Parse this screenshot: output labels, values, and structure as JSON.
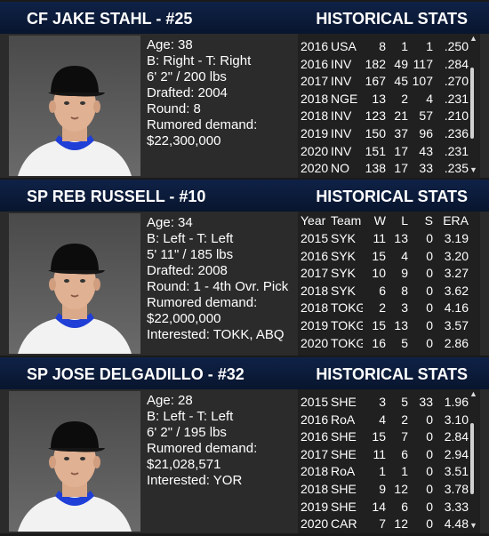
{
  "cards": [
    {
      "header": {
        "name": "CF JAKE STAHL - #25",
        "section": "HISTORICAL STATS"
      },
      "info": [
        "Age: 38",
        "B: Right - T: Right",
        "6' 2\" / 200 lbs",
        "Drafted: 2004",
        "Round: 8",
        "Rumored demand:",
        "$22,300,000"
      ],
      "stats": {
        "rows": [
          [
            "2016",
            "USA",
            "8",
            "1",
            "1",
            ".250"
          ],
          [
            "2016",
            "INV",
            "182",
            "49",
            "117",
            ".284"
          ],
          [
            "2017",
            "INV",
            "167",
            "45",
            "107",
            ".270"
          ],
          [
            "2018",
            "NGE",
            "13",
            "2",
            "4",
            ".231"
          ],
          [
            "2018",
            "INV",
            "123",
            "21",
            "57",
            ".210"
          ],
          [
            "2019",
            "INV",
            "150",
            "37",
            "96",
            ".236"
          ],
          [
            "2020",
            "INV",
            "151",
            "17",
            "43",
            ".231"
          ],
          [
            "2020",
            "NO",
            "138",
            "17",
            "33",
            ".235"
          ]
        ]
      }
    },
    {
      "header": {
        "name": "SP REB RUSSELL - #10",
        "section": "HISTORICAL STATS"
      },
      "info": [
        "Age: 34",
        "B: Left - T: Left",
        "5' 11\" / 185 lbs",
        "Drafted: 2008",
        "Round: 1 - 4th Ovr. Pick",
        "Rumored demand:",
        "$22,000,000",
        "Interested: TOKK, ABQ"
      ],
      "stats": {
        "columns": [
          "Year",
          "Team",
          "W",
          "L",
          "S",
          "ERA"
        ],
        "rows": [
          [
            "2015",
            "SYK",
            "11",
            "13",
            "0",
            "3.19"
          ],
          [
            "2016",
            "SYK",
            "15",
            "4",
            "0",
            "3.20"
          ],
          [
            "2017",
            "SYK",
            "10",
            "9",
            "0",
            "3.27"
          ],
          [
            "2018",
            "SYK",
            "6",
            "8",
            "0",
            "3.62"
          ],
          [
            "2018",
            "TOKG",
            "2",
            "3",
            "0",
            "4.16"
          ],
          [
            "2019",
            "TOKG",
            "15",
            "13",
            "0",
            "3.57"
          ],
          [
            "2020",
            "TOKG",
            "16",
            "5",
            "0",
            "2.86"
          ]
        ]
      }
    },
    {
      "header": {
        "name": "SP JOSE DELGADILLO - #32",
        "section": "HISTORICAL STATS"
      },
      "info": [
        "Age: 28",
        "B: Left - T: Left",
        "6' 2\" / 195 lbs",
        "Rumored demand:",
        "$21,028,571",
        "Interested: YOR"
      ],
      "stats": {
        "rows": [
          [
            "2015",
            "SHE",
            "3",
            "5",
            "33",
            "1.96"
          ],
          [
            "2016",
            "RoA",
            "4",
            "2",
            "0",
            "3.10"
          ],
          [
            "2016",
            "SHE",
            "15",
            "7",
            "0",
            "2.84"
          ],
          [
            "2017",
            "SHE",
            "11",
            "6",
            "0",
            "2.94"
          ],
          [
            "2018",
            "RoA",
            "1",
            "1",
            "0",
            "3.51"
          ],
          [
            "2018",
            "SHE",
            "9",
            "12",
            "0",
            "3.78"
          ],
          [
            "2019",
            "SHE",
            "14",
            "6",
            "0",
            "3.33"
          ],
          [
            "2020",
            "CAR",
            "7",
            "12",
            "0",
            "4.48"
          ]
        ]
      }
    }
  ]
}
